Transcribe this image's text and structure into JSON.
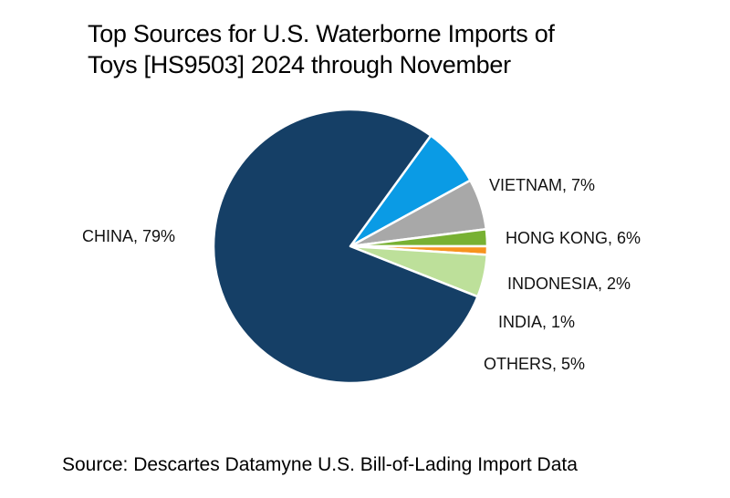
{
  "title": "Top Sources for U.S. Waterborne Imports of Toys [HS9503] 2024 through November",
  "title_lines": [
    "Top Sources for U.S. Waterborne Imports of",
    "Toys [HS9503] 2024 through November"
  ],
  "source": "Source: Descartes Datamyne U.S. Bill-of-Lading  Import Data",
  "labels": {
    "china": "CHINA, 79%",
    "vietnam": "VIETNAM, 7%",
    "hong_kong": "HONG KONG, 6%",
    "indonesia": "INDONESIA, 2%",
    "india": "INDIA, 1%",
    "others": "OTHERS, 5%"
  },
  "chart_data": {
    "type": "pie",
    "title": "Top Sources for U.S. Waterborne Imports of Toys [HS9503] 2024 through November",
    "categories": [
      "CHINA",
      "VIETNAM",
      "HONG KONG",
      "INDONESIA",
      "INDIA",
      "OTHERS"
    ],
    "values": [
      79,
      7,
      6,
      2,
      1,
      5
    ],
    "unit": "%",
    "colors": [
      "#153f66",
      "#0a9be5",
      "#a8a8a8",
      "#78b133",
      "#f7931e",
      "#bde09a"
    ],
    "start_angle_deg": 36,
    "direction": "clockwise",
    "legend": "none (data labels outside slices)",
    "annotation": "Source: Descartes Datamyne U.S. Bill-of-Lading  Import Data"
  }
}
